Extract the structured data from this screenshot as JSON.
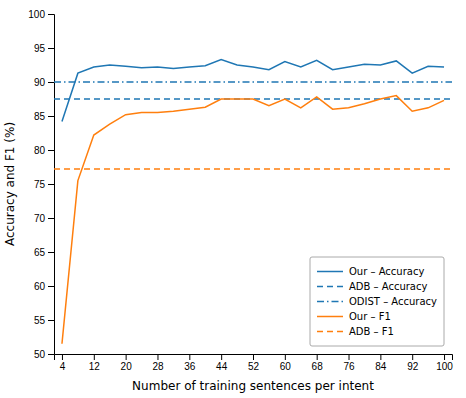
{
  "chart_data": {
    "type": "line",
    "x_label": "Number of training sentences per intent",
    "y_label": "Accuracy and F1 (%)",
    "x": [
      4,
      8,
      12,
      16,
      20,
      24,
      28,
      32,
      36,
      40,
      44,
      48,
      52,
      56,
      60,
      64,
      68,
      72,
      76,
      80,
      84,
      88,
      92,
      96,
      100
    ],
    "series": [
      {
        "name": "Our – Accuracy",
        "color": "#1f77b4",
        "type": "line",
        "line_style": "solid",
        "values": [
          84.2,
          91.3,
          92.2,
          92.5,
          92.3,
          92.1,
          92.2,
          92.0,
          92.2,
          92.4,
          93.3,
          92.5,
          92.2,
          91.8,
          93.0,
          92.2,
          93.2,
          91.8,
          92.2,
          92.6,
          92.5,
          93.1,
          91.3,
          92.3,
          92.2
        ]
      },
      {
        "name": "ADB – Accuracy",
        "color": "#1f77b4",
        "type": "hline",
        "line_style": "dashed",
        "value": 87.5
      },
      {
        "name": "ODIST – Accuracy",
        "color": "#1f77b4",
        "type": "hline",
        "line_style": "dashdot",
        "value": 90.0
      },
      {
        "name": "Our – F1",
        "color": "#ff7f0e",
        "type": "line",
        "line_style": "solid",
        "values": [
          51.5,
          75.5,
          82.2,
          83.8,
          85.2,
          85.5,
          85.5,
          85.7,
          86.0,
          86.3,
          87.5,
          87.5,
          87.5,
          86.5,
          87.5,
          86.2,
          87.8,
          86.0,
          86.2,
          86.8,
          87.5,
          88.0,
          85.7,
          86.2,
          87.3
        ]
      },
      {
        "name": "ADB – F1",
        "color": "#ff7f0e",
        "type": "hline",
        "line_style": "dashed",
        "value": 77.2
      }
    ],
    "xlim": [
      2,
      102
    ],
    "ylim": [
      50,
      100
    ],
    "xticks": [
      4,
      12,
      20,
      28,
      36,
      44,
      52,
      60,
      68,
      76,
      84,
      92,
      100
    ],
    "yticks": [
      50,
      55,
      60,
      65,
      70,
      75,
      80,
      85,
      90,
      95,
      100
    ],
    "grid": false,
    "legend": "lower right"
  }
}
